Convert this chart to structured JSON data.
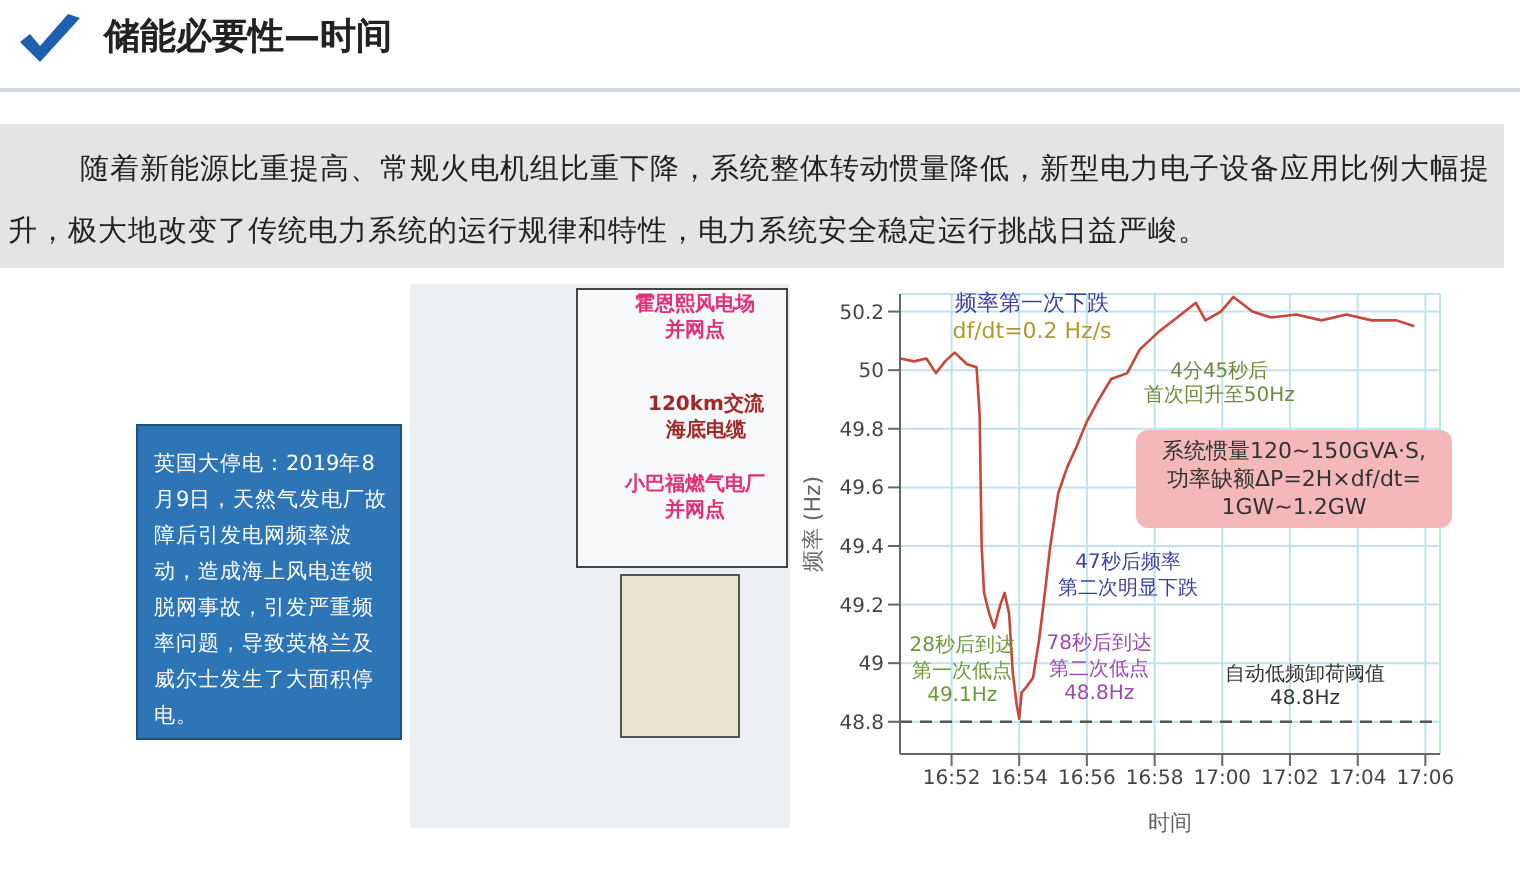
{
  "chart_data": {
    "type": "line",
    "title": "储能必要性—时间",
    "subtitle": "随着新能源比重提高、常规火电机组比重下降，系统整体转动惯量降低，新型电力电子设备应用比例大幅提升，极大地改变了传统电力系统的运行规律和特性，电力系统安全稳定运行挑战日益严峻。",
    "xlabel": "时间",
    "ylabel": "频率 (Hz)",
    "x": [
      16.8413,
      16.8482,
      16.8543,
      16.859,
      16.8635,
      16.8682,
      16.8743,
      16.879,
      16.8805,
      16.8815,
      16.8827,
      16.8852,
      16.8877,
      16.8907,
      16.8928,
      16.895,
      16.8968,
      16.8987,
      16.9,
      16.9012,
      16.9037,
      16.9068,
      16.9098,
      16.9123,
      16.9153,
      16.9192,
      16.9237,
      16.9283,
      16.933,
      16.9392,
      16.9453,
      16.9532,
      16.9593,
      16.9685,
      16.9778,
      16.987,
      16.9917,
      16.9993,
      17.0055,
      17.0148,
      17.024,
      17.0365,
      17.0488,
      17.0612,
      17.0735,
      17.0858,
      17.0945
    ],
    "series": [
      {
        "color": "#c8463a",
        "values": [
          50.04,
          50.03,
          50.04,
          49.99,
          50.03,
          50.06,
          50.02,
          50.01,
          49.85,
          49.4,
          49.24,
          49.17,
          49.12,
          49.2,
          49.24,
          49.17,
          48.97,
          48.86,
          48.81,
          48.9,
          48.92,
          48.95,
          49.08,
          49.22,
          49.4,
          49.58,
          49.67,
          49.74,
          49.82,
          49.9,
          49.97,
          49.99,
          50.07,
          50.13,
          50.18,
          50.23,
          50.17,
          50.2,
          50.25,
          50.2,
          50.18,
          50.19,
          50.17,
          50.19,
          50.17,
          50.17,
          50.15
        ]
      }
    ],
    "xlim": [
      16.8413,
      17.1072
    ],
    "xticks": [
      {
        "value": 16.8667,
        "label": "16:52"
      },
      {
        "value": 16.9,
        "label": "16:54"
      },
      {
        "value": 16.9333,
        "label": "16:56"
      },
      {
        "value": 16.9667,
        "label": "16:58"
      },
      {
        "value": 17,
        "label": "17:00"
      },
      {
        "value": 17.0333,
        "label": "17:02"
      },
      {
        "value": 17.0667,
        "label": "17:04"
      },
      {
        "value": 17.1,
        "label": "17:06"
      }
    ],
    "ylim": [
      48.69,
      50.26
    ],
    "yticks": [
      48.8,
      49,
      49.2,
      49.4,
      49.6,
      49.8,
      50,
      50.2
    ],
    "grid": true,
    "marker": "none",
    "line_style": "solid",
    "ref_lines": [
      {
        "axis": "y",
        "value": 48.8,
        "label": "自动低频卸荷阈值48.8Hz",
        "color": "#555555",
        "line_style": "dashed"
      }
    ],
    "annotations": [
      "频率第一次下跌df/dt=0.2 Hz/s",
      {
        "text": "4分45秒后首次回升至50Hz",
        "x": 16.9532,
        "y": 49.99
      },
      "系统惯量120~150GVA·S,功率缺额ΔP=2H×df/dt=1GW~1.2GW",
      "47秒后频率第二次明显下跌",
      {
        "text": "28秒后到达第一次低点49.1Hz",
        "x": 16.8877,
        "y": 49.12
      },
      {
        "text": "78秒后到达第二次低点48.8Hz",
        "x": 16.9,
        "y": 48.81
      },
      "英国大停电：2019年8月9日，天然气发电厂故障后引发电网频率波动，造成海上风电连锁脱网事故，引发严重频率问题，导致英格兰及威尔士发生了大面积停电。",
      "霍恩熙风电场并网点",
      "120km交流海底电缆",
      "小巴福燃气电厂并网点"
    ]
  }
}
